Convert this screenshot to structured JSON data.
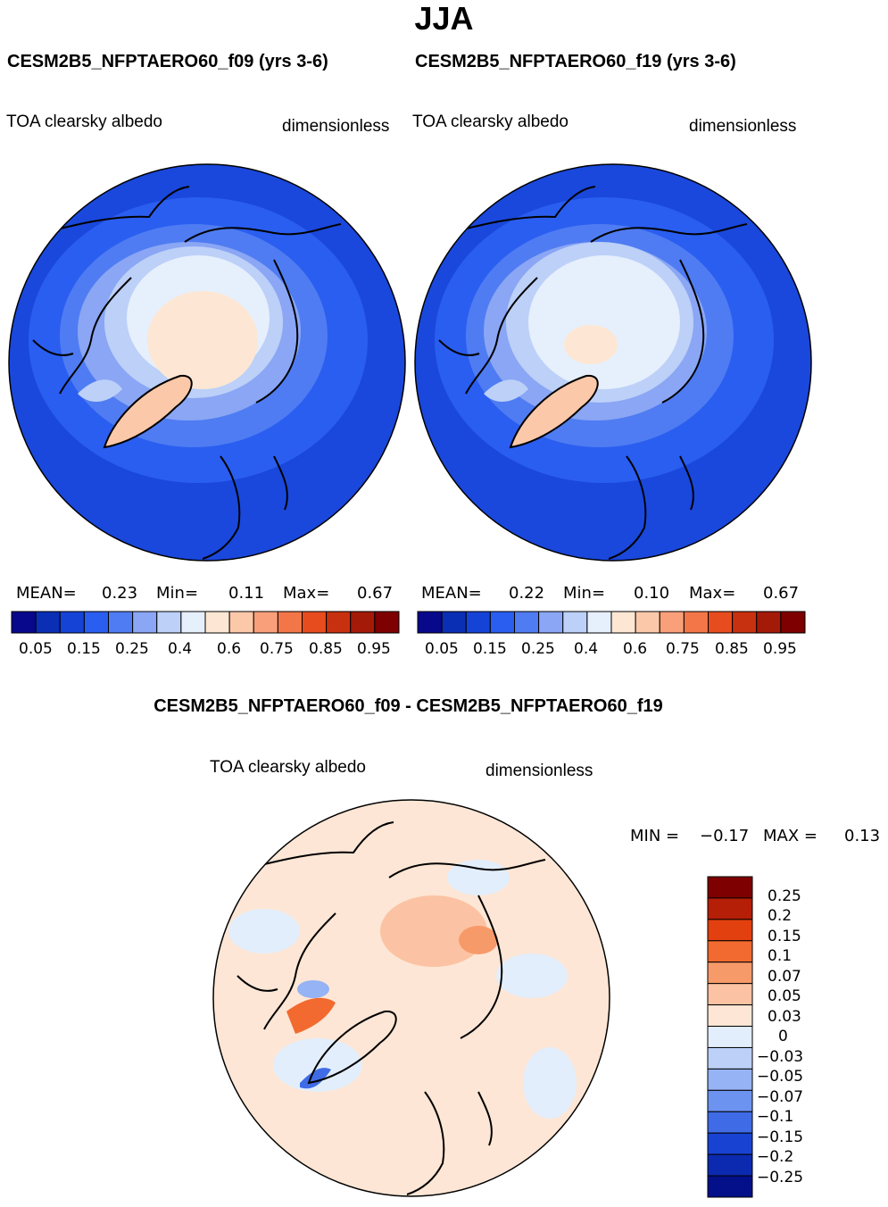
{
  "header": {
    "season": "JJA"
  },
  "panels": [
    {
      "title": "CESM2B5_NFPTAERO60_f09 (yrs 3-6)",
      "variable": "TOA clearsky albedo",
      "units": "dimensionless",
      "mean_label": "MEAN=",
      "mean_value": "0.23",
      "min_label": "Min=",
      "min_value": "0.11",
      "max_label": "Max=",
      "max_value": "0.67"
    },
    {
      "title": "CESM2B5_NFPTAERO60_f19 (yrs 3-6)",
      "variable": "TOA clearsky albedo",
      "units": "dimensionless",
      "mean_label": "MEAN=",
      "mean_value": "0.22",
      "min_label": "Min=",
      "min_value": "0.10",
      "max_label": "Max=",
      "max_value": "0.67"
    }
  ],
  "diff": {
    "title": "CESM2B5_NFPTAERO60_f09 - CESM2B5_NFPTAERO60_f19",
    "variable": "TOA clearsky albedo",
    "units": "dimensionless",
    "min_label": "MIN =",
    "min_value": "−0.17",
    "max_label": "MAX =",
    "max_value": "0.13"
  },
  "colorbars": {
    "field_colors": [
      "#08088c",
      "#0a2fb4",
      "#1443d6",
      "#2a5ef0",
      "#4f7cf2",
      "#8aa6f4",
      "#bcd0f8",
      "#e6effc",
      "#fde7d4",
      "#fcc8aa",
      "#f9a07a",
      "#f27648",
      "#e74c1f",
      "#c8310f",
      "#a41a08",
      "#7f0000"
    ],
    "field_ticks": [
      "0.05",
      "0.15",
      "0.25",
      "0.4",
      "0.6",
      "0.75",
      "0.85",
      "0.95"
    ],
    "diff_colors": [
      "#7f0000",
      "#b51e07",
      "#e3400f",
      "#f26a2f",
      "#f79a6a",
      "#fbc3a3",
      "#fde6d5",
      "#e3eefc",
      "#bcd0f8",
      "#95b3f5",
      "#6d93f0",
      "#3f6ce6",
      "#1843d2",
      "#0c2ab0",
      "#03108a"
    ],
    "diff_ticks": [
      "0.25",
      "0.2",
      "0.15",
      "0.1",
      "0.07",
      "0.05",
      "0.03",
      "0",
      "−0.03",
      "−0.05",
      "−0.07",
      "−0.1",
      "−0.15",
      "−0.2",
      "−0.25"
    ]
  }
}
